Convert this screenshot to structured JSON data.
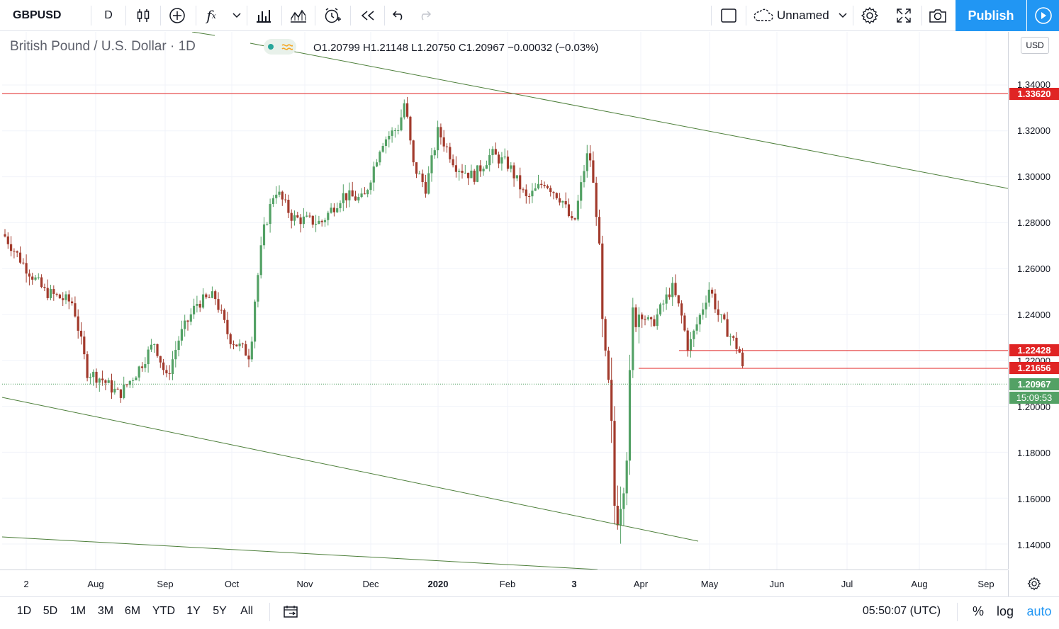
{
  "toolbar": {
    "symbol": "GBPUSD",
    "interval": "D",
    "fx_label": "f",
    "fx_sub": "x",
    "layout_name": "Unnamed",
    "publish_label": "Publish"
  },
  "legend": {
    "title": "British Pound / U.S. Dollar · 1D",
    "ohlc": "O1.20799  H1.21148  L1.20750  C1.20967  −0.00032 (−0.03%)"
  },
  "price_scale": {
    "currency": "USD",
    "labels": [
      "1.34000",
      "1.32000",
      "1.30000",
      "1.28000",
      "1.26000",
      "1.24000",
      "1.22000",
      "1.20000",
      "1.18000",
      "1.16000",
      "1.14000"
    ],
    "tags": [
      {
        "text": "1.33620",
        "color": "#e02424"
      },
      {
        "text": "1.22428",
        "color": "#e02424"
      },
      {
        "text": "1.21656",
        "color": "#e02424"
      },
      {
        "text": "1.20967",
        "color": "#53a165"
      },
      {
        "text": "15:09:53",
        "color": "#53a165"
      }
    ]
  },
  "time_axis": {
    "labels": [
      "2",
      "Aug",
      "Sep",
      "Oct",
      "Nov",
      "Dec",
      "2020",
      "Feb",
      "3",
      "Apr",
      "May",
      "Jun",
      "Jul",
      "Aug",
      "Sep"
    ]
  },
  "bottom_bar": {
    "ranges": [
      "1D",
      "5D",
      "1M",
      "3M",
      "6M",
      "YTD",
      "1Y",
      "5Y",
      "All"
    ],
    "clock": "05:50:07 (UTC)",
    "percent": "%",
    "log": "log",
    "auto": "auto"
  },
  "colors": {
    "up": "#53a165",
    "down": "#a23a2c",
    "hline": "#e02424",
    "trend": "#4d7f3a",
    "accent": "#2196f3"
  },
  "icons": [
    "candles-icon",
    "add-indicator-icon",
    "fx-icon",
    "chevron-down-icon",
    "bar-chart-icon",
    "compare-icon",
    "alert-icon",
    "replay-icon",
    "undo-icon",
    "redo-icon",
    "square-icon",
    "cloud-icon",
    "gear-icon",
    "fullscreen-icon",
    "camera-icon",
    "play-icon",
    "calendar-icon"
  ]
}
